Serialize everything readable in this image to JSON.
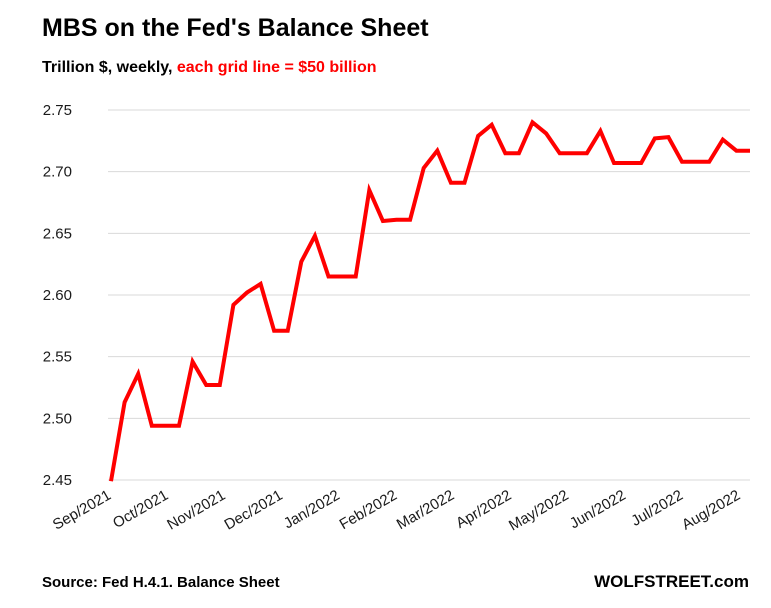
{
  "chart_data": {
    "type": "line",
    "title": "MBS on the Fed's Balance Sheet",
    "subtitle": "Trillion $, weekly, ",
    "subtitle_highlight": "each grid line = $50 billion",
    "source": "Source: Fed H.4.1. Balance Sheet",
    "brand": "WOLFSTREET.com",
    "xlabel": "",
    "ylabel": "",
    "ylim": [
      2.45,
      2.75
    ],
    "y_ticks": [
      "2.75",
      "2.70",
      "2.65",
      "2.60",
      "2.55",
      "2.50",
      "2.45"
    ],
    "x_ticks": [
      "Sep/2021",
      "Oct/2021",
      "Nov/2021",
      "Dec/2021",
      "Jan/2022",
      "Feb/2022",
      "Mar/2022",
      "Apr/2022",
      "May/2022",
      "Jun/2022",
      "Jul/2022",
      "Aug/2022"
    ],
    "line_color": "#ff0000",
    "grid_color": "#d9d9d9",
    "series": [
      {
        "name": "MBS",
        "values": [
          2.449,
          2.513,
          2.536,
          2.494,
          2.494,
          2.494,
          2.546,
          2.527,
          2.527,
          2.592,
          2.602,
          2.609,
          2.571,
          2.571,
          2.627,
          2.648,
          2.615,
          2.615,
          2.615,
          2.685,
          2.66,
          2.661,
          2.661,
          2.703,
          2.717,
          2.691,
          2.691,
          2.729,
          2.738,
          2.715,
          2.715,
          2.74,
          2.731,
          2.715,
          2.715,
          2.715,
          2.733,
          2.707,
          2.707,
          2.707,
          2.727,
          2.728,
          2.708,
          2.708,
          2.708,
          2.726,
          2.717,
          2.717
        ]
      }
    ]
  }
}
